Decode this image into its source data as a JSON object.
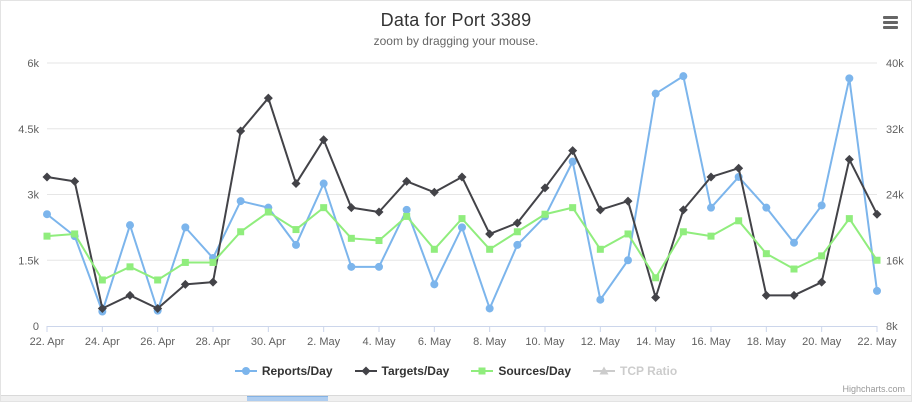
{
  "header": {
    "title": "Data for Port 3389",
    "subtitle": "zoom by dragging your mouse.",
    "menu_icon": "hamburger-icon"
  },
  "credits": "Highcharts.com",
  "colors": {
    "reports": "#7cb5ec",
    "targets": "#434348",
    "sources": "#90ed7d",
    "disabled": "#cccccc",
    "grid": "#e6e6e6",
    "axis_line": "#ccd6eb",
    "axis_label": "#606060",
    "title": "#333333",
    "subtitle": "#666666"
  },
  "chart_data": {
    "type": "line",
    "title": "Data for Port 3389",
    "subtitle": "zoom by dragging your mouse.",
    "grid": "horizontal-only",
    "legend_position": "bottom",
    "dates": [
      "22. Apr",
      "23. Apr",
      "24. Apr",
      "25. Apr",
      "26. Apr",
      "27. Apr",
      "28. Apr",
      "29. Apr",
      "30. Apr",
      "1. May",
      "2. May",
      "3. May",
      "4. May",
      "5. May",
      "6. May",
      "7. May",
      "8. May",
      "9. May",
      "10. May",
      "11. May",
      "12. May",
      "13. May",
      "14. May",
      "15. May",
      "16. May",
      "17. May",
      "18. May",
      "19. May",
      "20. May",
      "21. May",
      "22. May"
    ],
    "x_tick_every": 2,
    "y_axis_left": {
      "min": 0,
      "max": 6000,
      "values": [
        0,
        1500,
        3000,
        4500,
        6000
      ],
      "labels": [
        "0",
        "1.5k",
        "3k",
        "4.5k",
        "6k"
      ]
    },
    "y_axis_right": {
      "min": 8000,
      "max": 40000,
      "values": [
        8000,
        16000,
        24000,
        32000,
        40000
      ],
      "labels": [
        "8k",
        "16k",
        "24k",
        "32k",
        "40k"
      ]
    },
    "series": [
      {
        "name": "Reports/Day",
        "color": "#7cb5ec",
        "marker": "circle",
        "visible": true,
        "values": [
          2550,
          2050,
          330,
          2300,
          350,
          2250,
          1550,
          2850,
          2700,
          1850,
          3250,
          1350,
          1350,
          2650,
          950,
          2250,
          400,
          1850,
          2500,
          3750,
          600,
          1500,
          5300,
          5700,
          2700,
          3400,
          2700,
          1900,
          2750,
          5650,
          800
        ]
      },
      {
        "name": "Targets/Day",
        "color": "#434348",
        "marker": "diamond",
        "visible": true,
        "values": [
          3400,
          3300,
          400,
          700,
          400,
          950,
          1000,
          4450,
          5200,
          3250,
          4250,
          2700,
          2600,
          3300,
          3050,
          3400,
          2100,
          2350,
          3150,
          4000,
          2650,
          2850,
          650,
          2650,
          3400,
          3600,
          700,
          700,
          1000,
          3800,
          2550
        ]
      },
      {
        "name": "Sources/Day",
        "color": "#90ed7d",
        "marker": "square",
        "visible": true,
        "values": [
          2050,
          2100,
          1050,
          1350,
          1050,
          1450,
          1450,
          2150,
          2600,
          2200,
          2700,
          2000,
          1950,
          2500,
          1750,
          2450,
          1750,
          2150,
          2550,
          2700,
          1750,
          2100,
          1100,
          2150,
          2050,
          2400,
          1650,
          1300,
          1600,
          2450,
          1500
        ]
      },
      {
        "name": "TCP Ratio",
        "color": "#cccccc",
        "marker": "triangle",
        "visible": false,
        "values": []
      }
    ]
  }
}
